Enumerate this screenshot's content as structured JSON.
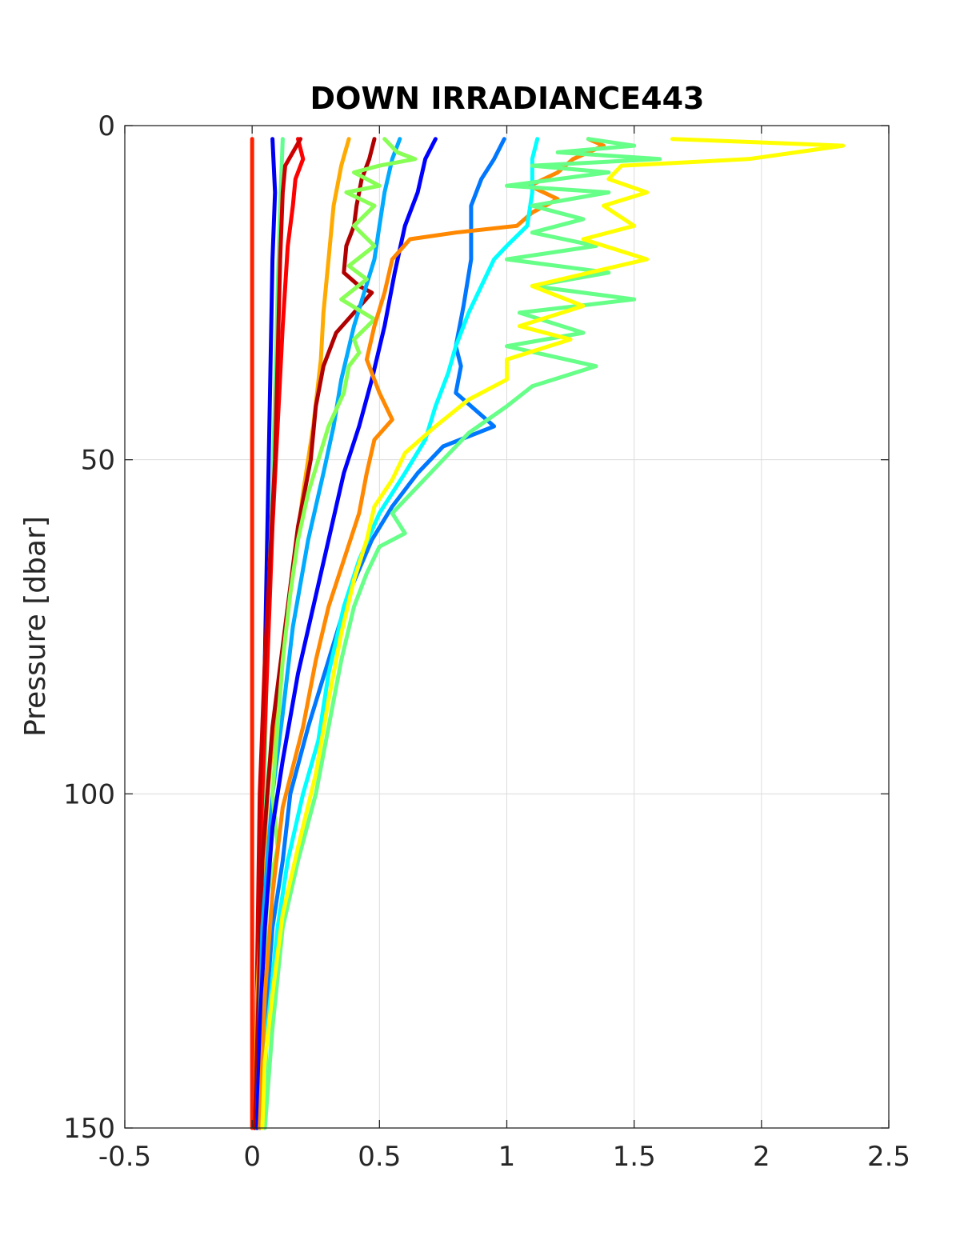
{
  "chart_data": {
    "type": "line",
    "title": "DOWN IRRADIANCE443",
    "xlabel": "",
    "ylabel": "Pressure [dbar]",
    "xlim": [
      -0.5,
      2.5
    ],
    "ylim": [
      0,
      150
    ],
    "y_reversed": true,
    "grid": true,
    "x_ticks": [
      "-0.5",
      "0",
      "0.5",
      "1",
      "1.5",
      "2",
      "2.5"
    ],
    "y_ticks": [
      "0",
      "50",
      "100",
      "150"
    ],
    "series": [
      {
        "color": "#ff2000",
        "points": [
          [
            0.0,
            2
          ],
          [
            0.0,
            20
          ],
          [
            0.0,
            50
          ],
          [
            0.0,
            80
          ],
          [
            0.0,
            110
          ],
          [
            0.0,
            130
          ],
          [
            0.0,
            150
          ]
        ]
      },
      {
        "color": "#0000f0",
        "points": [
          [
            0.08,
            2
          ],
          [
            0.09,
            10
          ],
          [
            0.08,
            20
          ],
          [
            0.07,
            40
          ],
          [
            0.06,
            60
          ],
          [
            0.05,
            80
          ],
          [
            0.04,
            100
          ],
          [
            0.03,
            120
          ],
          [
            0.02,
            150
          ]
        ]
      },
      {
        "color": "#60ff90",
        "points": [
          [
            0.12,
            2
          ],
          [
            0.11,
            12
          ],
          [
            0.1,
            25
          ],
          [
            0.09,
            40
          ],
          [
            0.08,
            55
          ],
          [
            0.06,
            75
          ],
          [
            0.05,
            95
          ],
          [
            0.04,
            115
          ],
          [
            0.03,
            150
          ]
        ]
      },
      {
        "color": "#ff0000",
        "points": [
          [
            0.18,
            2
          ],
          [
            0.2,
            5
          ],
          [
            0.17,
            8
          ],
          [
            0.16,
            12
          ],
          [
            0.14,
            18
          ],
          [
            0.12,
            30
          ],
          [
            0.1,
            45
          ],
          [
            0.08,
            60
          ],
          [
            0.07,
            70
          ],
          [
            0.05,
            90
          ],
          [
            0.03,
            110
          ],
          [
            0.01,
            150
          ]
        ]
      },
      {
        "color": "#cc0000",
        "points": [
          [
            0.19,
            2
          ],
          [
            0.16,
            4
          ],
          [
            0.13,
            6
          ],
          [
            0.12,
            10
          ],
          [
            0.11,
            20
          ],
          [
            0.1,
            35
          ],
          [
            0.09,
            50
          ],
          [
            0.07,
            65
          ],
          [
            0.05,
            80
          ],
          [
            0.03,
            100
          ],
          [
            0.01,
            150
          ]
        ]
      },
      {
        "color": "#ffaa00",
        "points": [
          [
            0.38,
            2
          ],
          [
            0.35,
            6
          ],
          [
            0.32,
            12
          ],
          [
            0.3,
            20
          ],
          [
            0.28,
            28
          ],
          [
            0.27,
            35
          ],
          [
            0.24,
            45
          ],
          [
            0.2,
            55
          ],
          [
            0.15,
            70
          ],
          [
            0.1,
            85
          ],
          [
            0.06,
            100
          ],
          [
            0.02,
            130
          ],
          [
            0.01,
            150
          ]
        ]
      },
      {
        "color": "#b00000",
        "points": [
          [
            0.48,
            2
          ],
          [
            0.46,
            5
          ],
          [
            0.43,
            8
          ],
          [
            0.41,
            12
          ],
          [
            0.4,
            15
          ],
          [
            0.37,
            18
          ],
          [
            0.36,
            22
          ],
          [
            0.42,
            24
          ],
          [
            0.47,
            25
          ],
          [
            0.4,
            28
          ],
          [
            0.33,
            31
          ],
          [
            0.28,
            36
          ],
          [
            0.25,
            42
          ],
          [
            0.23,
            50
          ],
          [
            0.18,
            60
          ],
          [
            0.13,
            75
          ],
          [
            0.08,
            90
          ],
          [
            0.04,
            110
          ],
          [
            0.01,
            150
          ]
        ]
      },
      {
        "color": "#00aaff",
        "points": [
          [
            0.58,
            2
          ],
          [
            0.55,
            5
          ],
          [
            0.52,
            10
          ],
          [
            0.5,
            15
          ],
          [
            0.48,
            20
          ],
          [
            0.44,
            25
          ],
          [
            0.4,
            30
          ],
          [
            0.35,
            38
          ],
          [
            0.32,
            45
          ],
          [
            0.28,
            52
          ],
          [
            0.22,
            62
          ],
          [
            0.16,
            75
          ],
          [
            0.12,
            88
          ],
          [
            0.08,
            100
          ],
          [
            0.04,
            120
          ],
          [
            0.02,
            150
          ]
        ]
      },
      {
        "color": "#88ff55",
        "points": [
          [
            0.52,
            2
          ],
          [
            0.57,
            4
          ],
          [
            0.64,
            5
          ],
          [
            0.5,
            6
          ],
          [
            0.4,
            7
          ],
          [
            0.5,
            9
          ],
          [
            0.37,
            10
          ],
          [
            0.48,
            12
          ],
          [
            0.4,
            15
          ],
          [
            0.48,
            18
          ],
          [
            0.38,
            21
          ],
          [
            0.45,
            23
          ],
          [
            0.35,
            26
          ],
          [
            0.48,
            29
          ],
          [
            0.4,
            32
          ],
          [
            0.42,
            34
          ],
          [
            0.38,
            36
          ],
          [
            0.36,
            40
          ],
          [
            0.3,
            45
          ],
          [
            0.26,
            50
          ],
          [
            0.22,
            55
          ],
          [
            0.18,
            62
          ],
          [
            0.15,
            70
          ],
          [
            0.12,
            80
          ],
          [
            0.1,
            90
          ],
          [
            0.08,
            100
          ],
          [
            0.1,
            108
          ],
          [
            0.06,
            115
          ],
          [
            0.04,
            130
          ],
          [
            0.02,
            150
          ]
        ]
      },
      {
        "color": "#0000ff",
        "points": [
          [
            0.72,
            2
          ],
          [
            0.68,
            5
          ],
          [
            0.65,
            10
          ],
          [
            0.6,
            15
          ],
          [
            0.56,
            22
          ],
          [
            0.52,
            30
          ],
          [
            0.47,
            38
          ],
          [
            0.42,
            45
          ],
          [
            0.36,
            52
          ],
          [
            0.3,
            62
          ],
          [
            0.24,
            72
          ],
          [
            0.18,
            82
          ],
          [
            0.12,
            95
          ],
          [
            0.08,
            105
          ],
          [
            0.05,
            120
          ],
          [
            0.03,
            135
          ],
          [
            0.02,
            150
          ]
        ]
      },
      {
        "color": "#0077ff",
        "points": [
          [
            0.99,
            2
          ],
          [
            0.95,
            5
          ],
          [
            0.9,
            8
          ],
          [
            0.86,
            12
          ],
          [
            0.86,
            20
          ],
          [
            0.83,
            27
          ],
          [
            0.8,
            33
          ],
          [
            0.82,
            36
          ],
          [
            0.8,
            40
          ],
          [
            0.95,
            45
          ],
          [
            0.75,
            48
          ],
          [
            0.65,
            52
          ],
          [
            0.55,
            57
          ],
          [
            0.47,
            62
          ],
          [
            0.38,
            70
          ],
          [
            0.3,
            80
          ],
          [
            0.22,
            90
          ],
          [
            0.15,
            100
          ],
          [
            0.12,
            110
          ],
          [
            0.08,
            120
          ],
          [
            0.05,
            135
          ],
          [
            0.03,
            150
          ]
        ]
      },
      {
        "color": "#ff8800",
        "points": [
          [
            1.32,
            2
          ],
          [
            1.38,
            3
          ],
          [
            1.26,
            5
          ],
          [
            1.2,
            7
          ],
          [
            1.09,
            9
          ],
          [
            1.2,
            11
          ],
          [
            1.1,
            13
          ],
          [
            1.04,
            15
          ],
          [
            0.8,
            16
          ],
          [
            0.62,
            17
          ],
          [
            0.55,
            20
          ],
          [
            0.52,
            25
          ],
          [
            0.48,
            30
          ],
          [
            0.45,
            35
          ],
          [
            0.5,
            40
          ],
          [
            0.55,
            44
          ],
          [
            0.48,
            47
          ],
          [
            0.45,
            52
          ],
          [
            0.42,
            58
          ],
          [
            0.36,
            65
          ],
          [
            0.3,
            72
          ],
          [
            0.25,
            80
          ],
          [
            0.2,
            90
          ],
          [
            0.12,
            102
          ],
          [
            0.08,
            115
          ],
          [
            0.05,
            130
          ],
          [
            0.03,
            150
          ]
        ]
      },
      {
        "color": "#00ffff",
        "points": [
          [
            1.12,
            2
          ],
          [
            1.1,
            5
          ],
          [
            1.1,
            10
          ],
          [
            1.08,
            15
          ],
          [
            1.0,
            18
          ],
          [
            0.95,
            20
          ],
          [
            0.9,
            24
          ],
          [
            0.85,
            28
          ],
          [
            0.8,
            33
          ],
          [
            0.77,
            37
          ],
          [
            0.72,
            42
          ],
          [
            0.68,
            47
          ],
          [
            0.6,
            52
          ],
          [
            0.5,
            58
          ],
          [
            0.42,
            65
          ],
          [
            0.36,
            72
          ],
          [
            0.3,
            82
          ],
          [
            0.26,
            92
          ],
          [
            0.2,
            100
          ],
          [
            0.14,
            110
          ],
          [
            0.1,
            120
          ],
          [
            0.06,
            135
          ],
          [
            0.04,
            150
          ]
        ]
      },
      {
        "color": "#66ff88",
        "points": [
          [
            1.32,
            2
          ],
          [
            1.5,
            3
          ],
          [
            1.2,
            4
          ],
          [
            1.6,
            5
          ],
          [
            1.1,
            6
          ],
          [
            1.4,
            7
          ],
          [
            1.0,
            9
          ],
          [
            1.4,
            10
          ],
          [
            1.1,
            12
          ],
          [
            1.3,
            14
          ],
          [
            1.1,
            16
          ],
          [
            1.35,
            18
          ],
          [
            1.0,
            20
          ],
          [
            1.4,
            22
          ],
          [
            1.1,
            24
          ],
          [
            1.5,
            26
          ],
          [
            1.05,
            28
          ],
          [
            1.3,
            31
          ],
          [
            1.0,
            33
          ],
          [
            1.35,
            36
          ],
          [
            1.1,
            39
          ],
          [
            1.0,
            42
          ],
          [
            0.85,
            46
          ],
          [
            0.75,
            50
          ],
          [
            0.65,
            54
          ],
          [
            0.55,
            58
          ],
          [
            0.6,
            61
          ],
          [
            0.5,
            63
          ],
          [
            0.45,
            67
          ],
          [
            0.4,
            72
          ],
          [
            0.35,
            80
          ],
          [
            0.3,
            90
          ],
          [
            0.25,
            100
          ],
          [
            0.18,
            110
          ],
          [
            0.12,
            120
          ],
          [
            0.08,
            135
          ],
          [
            0.05,
            150
          ]
        ]
      },
      {
        "color": "#ffff00",
        "points": [
          [
            1.65,
            2
          ],
          [
            2.32,
            3
          ],
          [
            1.95,
            5
          ],
          [
            1.45,
            6
          ],
          [
            1.4,
            8
          ],
          [
            1.55,
            10
          ],
          [
            1.38,
            12
          ],
          [
            1.5,
            15
          ],
          [
            1.3,
            17
          ],
          [
            1.55,
            20
          ],
          [
            1.1,
            24
          ],
          [
            1.3,
            27
          ],
          [
            1.05,
            30
          ],
          [
            1.25,
            32
          ],
          [
            1.0,
            35
          ],
          [
            1.0,
            38
          ],
          [
            0.85,
            41
          ],
          [
            0.72,
            45
          ],
          [
            0.6,
            49
          ],
          [
            0.55,
            53
          ],
          [
            0.48,
            57
          ],
          [
            0.45,
            62
          ],
          [
            0.4,
            68
          ],
          [
            0.35,
            76
          ],
          [
            0.3,
            86
          ],
          [
            0.25,
            97
          ],
          [
            0.18,
            108
          ],
          [
            0.12,
            118
          ],
          [
            0.08,
            130
          ],
          [
            0.05,
            140
          ],
          [
            0.04,
            150
          ]
        ]
      }
    ]
  }
}
